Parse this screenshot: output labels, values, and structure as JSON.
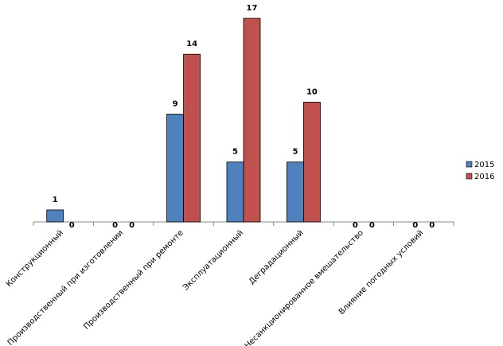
{
  "chart_data": {
    "type": "bar",
    "categories": [
      "Конструкционный",
      "Производственный при изготовлении",
      "Производственный при ремонте",
      "Эксплуатационный",
      "Деградационный",
      "Несанкционированное вмешательство",
      "Влияние погодных условий"
    ],
    "series": [
      {
        "name": "2015",
        "color": "#4f81bd",
        "values": [
          1,
          0,
          9,
          5,
          5,
          0,
          0
        ]
      },
      {
        "name": "2016",
        "color": "#c0504d",
        "values": [
          0,
          0,
          14,
          17,
          10,
          0,
          0
        ]
      }
    ],
    "ylim": [
      0,
      18
    ],
    "legend": "right"
  }
}
